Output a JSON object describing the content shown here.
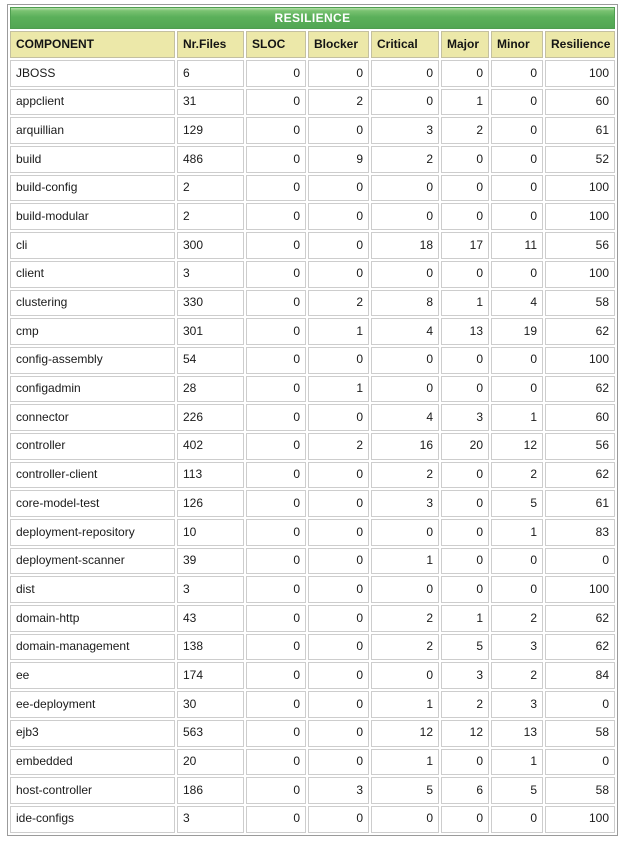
{
  "colors": {
    "title_green": "#56ac57",
    "title_green_light": "#a8d79b",
    "header_khaki": "#ece8a9",
    "cell_border": "#cdcdcd",
    "outer_border": "#9b9b9b",
    "text": "#1a1a1a",
    "title_text": "#ffffff"
  },
  "table": {
    "title": "RESILIENCE",
    "columns": [
      "COMPONENT",
      "Nr.Files",
      "SLOC",
      "Blocker",
      "Critical",
      "Major",
      "Minor",
      "Resilience"
    ],
    "rows": [
      [
        "JBOSS",
        6,
        0,
        0,
        0,
        0,
        0,
        100
      ],
      [
        "appclient",
        31,
        0,
        2,
        0,
        1,
        0,
        60
      ],
      [
        "arquillian",
        129,
        0,
        0,
        3,
        2,
        0,
        61
      ],
      [
        "build",
        486,
        0,
        9,
        2,
        0,
        0,
        52
      ],
      [
        "build-config",
        2,
        0,
        0,
        0,
        0,
        0,
        100
      ],
      [
        "build-modular",
        2,
        0,
        0,
        0,
        0,
        0,
        100
      ],
      [
        "cli",
        300,
        0,
        0,
        18,
        17,
        11,
        56
      ],
      [
        "client",
        3,
        0,
        0,
        0,
        0,
        0,
        100
      ],
      [
        "clustering",
        330,
        0,
        2,
        8,
        1,
        4,
        58
      ],
      [
        "cmp",
        301,
        0,
        1,
        4,
        13,
        19,
        62
      ],
      [
        "config-assembly",
        54,
        0,
        0,
        0,
        0,
        0,
        100
      ],
      [
        "configadmin",
        28,
        0,
        1,
        0,
        0,
        0,
        62
      ],
      [
        "connector",
        226,
        0,
        0,
        4,
        3,
        1,
        60
      ],
      [
        "controller",
        402,
        0,
        2,
        16,
        20,
        12,
        56
      ],
      [
        "controller-client",
        113,
        0,
        0,
        2,
        0,
        2,
        62
      ],
      [
        "core-model-test",
        126,
        0,
        0,
        3,
        0,
        5,
        61
      ],
      [
        "deployment-repository",
        10,
        0,
        0,
        0,
        0,
        1,
        83
      ],
      [
        "deployment-scanner",
        39,
        0,
        0,
        1,
        0,
        0,
        0
      ],
      [
        "dist",
        3,
        0,
        0,
        0,
        0,
        0,
        100
      ],
      [
        "domain-http",
        43,
        0,
        0,
        2,
        1,
        2,
        62
      ],
      [
        "domain-management",
        138,
        0,
        0,
        2,
        5,
        3,
        62
      ],
      [
        "ee",
        174,
        0,
        0,
        0,
        3,
        2,
        84
      ],
      [
        "ee-deployment",
        30,
        0,
        0,
        1,
        2,
        3,
        0
      ],
      [
        "ejb3",
        563,
        0,
        0,
        12,
        12,
        13,
        58
      ],
      [
        "embedded",
        20,
        0,
        0,
        1,
        0,
        1,
        0
      ],
      [
        "host-controller",
        186,
        0,
        3,
        5,
        6,
        5,
        58
      ],
      [
        "ide-configs",
        3,
        0,
        0,
        0,
        0,
        0,
        100
      ]
    ]
  }
}
